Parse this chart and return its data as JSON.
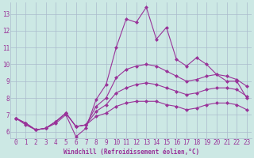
{
  "title": "",
  "xlabel": "Windchill (Refroidissement éolien,°C)",
  "ylabel": "",
  "background_color": "#cce8e4",
  "plot_bg_color": "#cce8e4",
  "line_color": "#993399",
  "grid_color": "#aabbcc",
  "x_data": [
    0,
    1,
    2,
    3,
    4,
    5,
    6,
    7,
    8,
    9,
    10,
    11,
    12,
    13,
    14,
    15,
    16,
    17,
    18,
    19,
    20,
    21,
    22,
    23
  ],
  "series": [
    [
      6.8,
      6.4,
      6.1,
      6.2,
      6.5,
      7.0,
      5.7,
      6.2,
      7.9,
      8.8,
      11.0,
      12.7,
      12.5,
      13.4,
      11.5,
      12.2,
      10.3,
      9.9,
      10.4,
      10.0,
      9.4,
      9.0,
      9.0,
      8.0
    ],
    [
      6.8,
      6.5,
      6.1,
      6.2,
      6.6,
      7.1,
      6.3,
      6.4,
      7.5,
      8.0,
      9.2,
      9.7,
      9.9,
      10.0,
      9.9,
      9.6,
      9.3,
      9.0,
      9.1,
      9.3,
      9.4,
      9.3,
      9.1,
      8.7
    ],
    [
      6.8,
      6.5,
      6.1,
      6.2,
      6.6,
      7.1,
      6.3,
      6.4,
      7.2,
      7.6,
      8.3,
      8.6,
      8.8,
      8.9,
      8.8,
      8.6,
      8.4,
      8.2,
      8.3,
      8.5,
      8.6,
      8.6,
      8.5,
      8.1
    ],
    [
      6.8,
      6.5,
      6.1,
      6.2,
      6.6,
      7.1,
      6.3,
      6.4,
      6.9,
      7.1,
      7.5,
      7.7,
      7.8,
      7.8,
      7.8,
      7.6,
      7.5,
      7.3,
      7.4,
      7.6,
      7.7,
      7.7,
      7.6,
      7.3
    ]
  ],
  "ylim_bottom": 5.6,
  "ylim_top": 13.7,
  "xlim_left": -0.5,
  "xlim_right": 23.5,
  "yticks": [
    6,
    7,
    8,
    9,
    10,
    11,
    12,
    13
  ],
  "xticks": [
    0,
    1,
    2,
    3,
    4,
    5,
    6,
    7,
    8,
    9,
    10,
    11,
    12,
    13,
    14,
    15,
    16,
    17,
    18,
    19,
    20,
    21,
    22,
    23
  ],
  "marker": "D",
  "markersize": 2,
  "linewidth": 0.8,
  "xlabel_fontsize": 5.5,
  "tick_fontsize": 5.5
}
